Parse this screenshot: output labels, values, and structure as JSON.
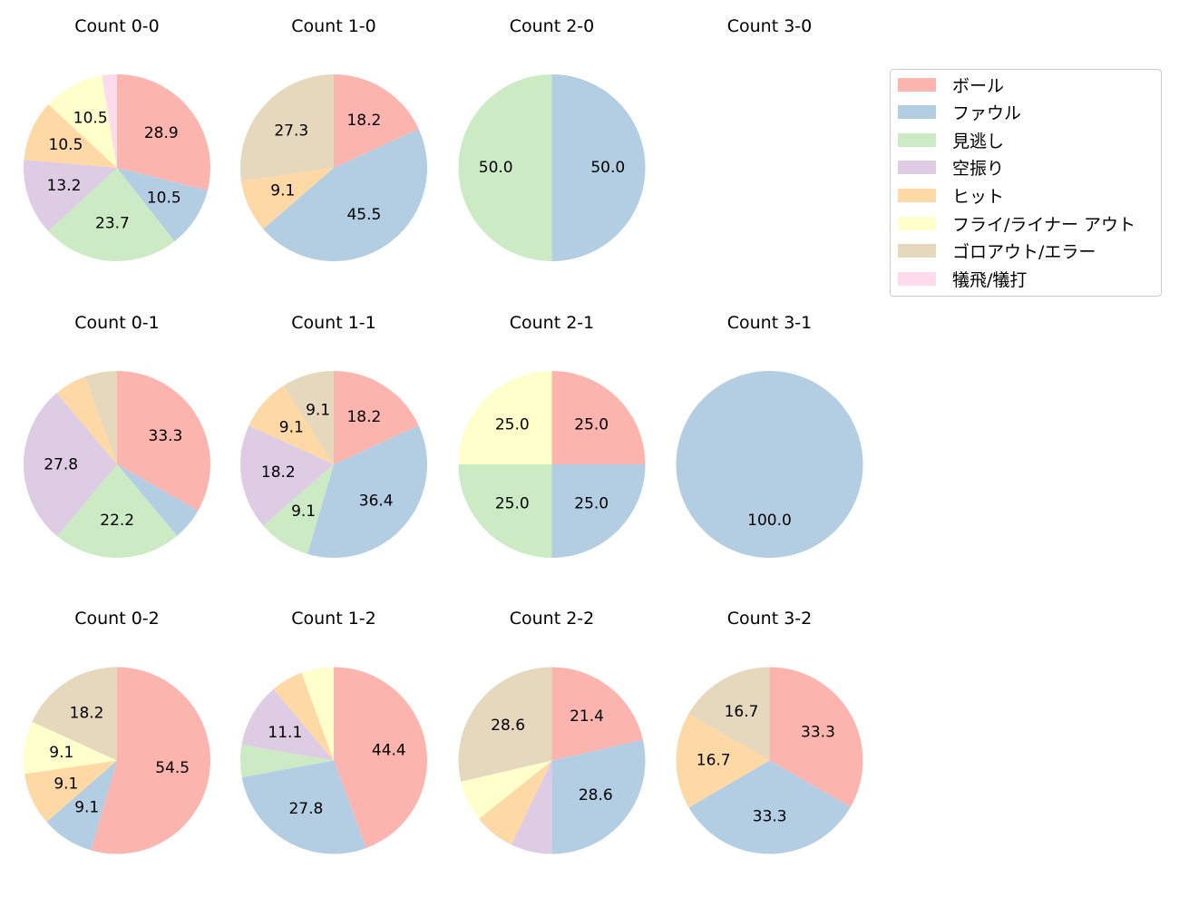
{
  "chart_data": [
    {
      "type": "pie",
      "title": "Count 0-0",
      "values": [
        28.9,
        10.5,
        23.7,
        13.2,
        10.5,
        10.5,
        0,
        2.6
      ]
    },
    {
      "type": "pie",
      "title": "Count 1-0",
      "values": [
        18.2,
        45.5,
        0,
        0,
        9.1,
        0,
        27.3,
        0
      ]
    },
    {
      "type": "pie",
      "title": "Count 2-0",
      "values": [
        0,
        50.0,
        50.0,
        0,
        0,
        0,
        0,
        0
      ]
    },
    {
      "type": "pie",
      "title": "Count 3-0",
      "values": []
    },
    {
      "type": "pie",
      "title": "Count 0-1",
      "values": [
        33.3,
        5.6,
        22.2,
        27.8,
        5.6,
        0,
        5.6,
        0
      ]
    },
    {
      "type": "pie",
      "title": "Count 1-1",
      "values": [
        18.2,
        36.4,
        9.1,
        18.2,
        9.1,
        0,
        9.1,
        0
      ]
    },
    {
      "type": "pie",
      "title": "Count 2-1",
      "values": [
        25.0,
        25.0,
        25.0,
        0,
        0,
        25.0,
        0,
        0
      ]
    },
    {
      "type": "pie",
      "title": "Count 3-1",
      "values": [
        0,
        100.0,
        0,
        0,
        0,
        0,
        0,
        0
      ]
    },
    {
      "type": "pie",
      "title": "Count 0-2",
      "values": [
        54.5,
        9.1,
        0,
        0,
        9.1,
        9.1,
        18.2,
        0
      ]
    },
    {
      "type": "pie",
      "title": "Count 1-2",
      "values": [
        44.4,
        27.8,
        5.6,
        11.1,
        5.6,
        5.6,
        0,
        0
      ]
    },
    {
      "type": "pie",
      "title": "Count 2-2",
      "values": [
        21.4,
        28.6,
        0,
        7.1,
        7.1,
        7.1,
        28.6,
        0
      ]
    },
    {
      "type": "pie",
      "title": "Count 3-2",
      "values": [
        33.3,
        33.3,
        0,
        0,
        16.7,
        0,
        16.7,
        0
      ]
    }
  ],
  "legend": {
    "placement": "right",
    "labels": [
      "ボール",
      "ファウル",
      "見逃し",
      "空振り",
      "ヒット",
      "フライ/ライナー アウト",
      "ゴロアウト/エラー",
      "犠飛/犠打"
    ],
    "colors": [
      "#fbb4ae",
      "#b3cde3",
      "#ccebc5",
      "#decbe4",
      "#fed9a6",
      "#ffffcc",
      "#e5d8bd",
      "#fddaec"
    ]
  }
}
